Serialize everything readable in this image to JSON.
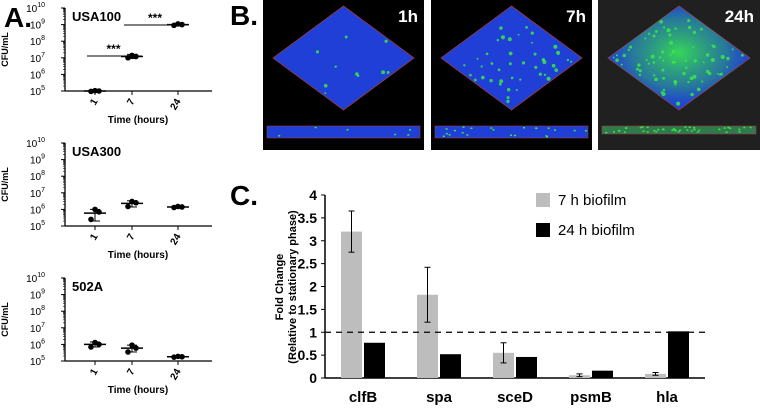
{
  "panel_labels": {
    "a": "A.",
    "b": "B.",
    "c": "C."
  },
  "panel_a": {
    "ylabel": "CFU/mL",
    "xlabel": "Time (hours)",
    "tick_labels_y": [
      "5",
      "6",
      "7",
      "8",
      "9",
      "10"
    ],
    "tick_base": "10",
    "x_ticks": [
      "1",
      "7",
      "24"
    ],
    "significance": "***"
  },
  "panel_b": {
    "times": [
      "1h",
      "7h",
      "24h"
    ],
    "colors": {
      "background": "#000000",
      "cells": "#1f3fd6",
      "live_signal": "#38e84a",
      "frame": "#9a3a4a"
    }
  },
  "panel_c": {
    "ylabel_line1": "Fold Change",
    "ylabel_line2": "(Relative to stationary phase)"
  },
  "chart_data": [
    {
      "type": "scatter",
      "title": "USA100",
      "xlabel": "Time (hours)",
      "ylabel": "CFU/mL",
      "log_scale": true,
      "ylim": [
        100000,
        10000000000
      ],
      "categories": [
        "1",
        "7",
        "24"
      ],
      "means": [
        100000,
        12000000,
        1000000000
      ],
      "error": [
        [
          90000,
          115000
        ],
        [
          9000000,
          16000000
        ],
        [
          850000000,
          1150000000
        ]
      ],
      "points": [
        [
          95000,
          100000,
          105000
        ],
        [
          10000000,
          12000000,
          14000000
        ],
        [
          900000000,
          1000000000,
          1100000000
        ]
      ],
      "significance_brackets": [
        {
          "from": "1",
          "to": "7",
          "label": "***"
        },
        {
          "from": "7",
          "to": "24",
          "label": "***"
        }
      ]
    },
    {
      "type": "scatter",
      "title": "USA300",
      "xlabel": "Time (hours)",
      "ylabel": "CFU/mL",
      "log_scale": true,
      "ylim": [
        100000,
        10000000000
      ],
      "categories": [
        "1",
        "7",
        "24"
      ],
      "means": [
        600000,
        2300000,
        1400000
      ],
      "error": [
        [
          200000,
          1000000
        ],
        [
          1400000,
          3300000
        ],
        [
          1250000,
          1550000
        ]
      ],
      "points": [
        [
          250000,
          700000,
          1000000
        ],
        [
          1500000,
          2500000,
          3000000
        ],
        [
          1300000,
          1400000,
          1500000
        ]
      ]
    },
    {
      "type": "scatter",
      "title": "502A",
      "xlabel": "Time (hours)",
      "ylabel": "CFU/mL",
      "log_scale": true,
      "ylim": [
        100000,
        10000000000
      ],
      "categories": [
        "1",
        "7",
        "24"
      ],
      "means": [
        1000000,
        600000,
        180000
      ],
      "error": [
        [
          700000,
          1400000
        ],
        [
          350000,
          900000
        ],
        [
          160000,
          200000
        ]
      ],
      "points": [
        [
          700000,
          1000000,
          1300000
        ],
        [
          350000,
          600000,
          900000
        ],
        [
          170000,
          180000,
          190000
        ]
      ]
    },
    {
      "type": "bar",
      "categories": [
        "clfB",
        "spa",
        "sceD",
        "psmB",
        "hla"
      ],
      "series": [
        {
          "name": "7 h biofilm",
          "color": "#bdbdbd",
          "values": [
            3.2,
            1.82,
            0.55,
            0.06,
            0.09
          ],
          "error": [
            0.45,
            0.6,
            0.22,
            0.03,
            0.03
          ]
        },
        {
          "name": "24 h biofilm",
          "color": "#000000",
          "values": [
            0.77,
            0.52,
            0.46,
            0.16,
            1.02
          ]
        }
      ],
      "ylim": [
        0,
        4
      ],
      "yticks": [
        "0",
        "0.5",
        "1",
        "1.5",
        "2",
        "2.5",
        "3",
        "3.5",
        "4"
      ],
      "reference_line": 1,
      "legend": "top-right"
    }
  ]
}
